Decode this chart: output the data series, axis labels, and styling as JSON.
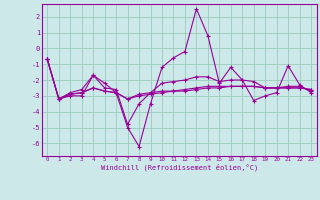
{
  "xlabel": "Windchill (Refroidissement éolien,°C)",
  "background_color": "#cce8e8",
  "grid_color": "#99ccbb",
  "line_color": "#990099",
  "x": [
    0,
    1,
    2,
    3,
    4,
    5,
    6,
    7,
    8,
    9,
    10,
    11,
    12,
    13,
    14,
    15,
    16,
    17,
    18,
    19,
    20,
    21,
    22,
    23
  ],
  "series1": [
    -0.7,
    -3.2,
    -3.0,
    -3.0,
    -1.7,
    -2.2,
    -2.8,
    -5.0,
    -6.2,
    -3.5,
    -1.2,
    -0.6,
    -0.2,
    2.5,
    0.8,
    -2.2,
    -1.2,
    -2.0,
    -3.3,
    -3.0,
    -2.8,
    -1.1,
    -2.3,
    -2.8
  ],
  "series2": [
    -0.7,
    -3.2,
    -2.8,
    -2.6,
    -1.7,
    -2.5,
    -2.6,
    -4.8,
    -3.5,
    -2.8,
    -2.2,
    -2.1,
    -2.0,
    -1.8,
    -1.8,
    -2.1,
    -2.0,
    -2.0,
    -2.1,
    -2.5,
    -2.5,
    -2.4,
    -2.4,
    -2.7
  ],
  "series3": [
    -0.7,
    -3.2,
    -2.9,
    -2.8,
    -2.5,
    -2.7,
    -2.8,
    -3.2,
    -2.9,
    -2.8,
    -2.7,
    -2.7,
    -2.6,
    -2.5,
    -2.4,
    -2.4,
    -2.4,
    -2.4,
    -2.4,
    -2.5,
    -2.5,
    -2.5,
    -2.5,
    -2.6
  ],
  "series4": [
    -0.7,
    -3.2,
    -2.9,
    -2.8,
    -2.5,
    -2.7,
    -2.8,
    -3.2,
    -3.0,
    -2.9,
    -2.8,
    -2.7,
    -2.7,
    -2.6,
    -2.5,
    -2.5,
    -2.4,
    -2.4,
    -2.4,
    -2.5,
    -2.5,
    -2.5,
    -2.5,
    -2.6
  ],
  "ylim": [
    -6.8,
    2.8
  ],
  "yticks": [
    -6,
    -5,
    -4,
    -3,
    -2,
    -1,
    0,
    1,
    2
  ],
  "xticks": [
    0,
    1,
    2,
    3,
    4,
    5,
    6,
    7,
    8,
    9,
    10,
    11,
    12,
    13,
    14,
    15,
    16,
    17,
    18,
    19,
    20,
    21,
    22,
    23
  ]
}
